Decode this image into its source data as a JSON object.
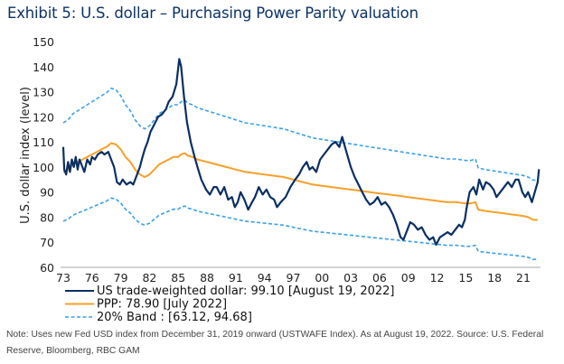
{
  "title": "Exhibit 5: U.S. dollar – Purchasing Power Parity valuation",
  "note": "Note: Uses new Fed USD index from December 31, 2019 onward (USTWAFE Index). As at August 19, 2022. Source: U.S. Federal Reserve, Bloomberg, RBC GAM",
  "colors": {
    "dollar": "#0b2f63",
    "ppp": "#f7a028",
    "band": "#3aa0e8",
    "title": "#0d3366",
    "axis": "#bbbbbb"
  },
  "chart_data": {
    "type": "line",
    "title": "Exhibit 5: U.S. dollar – Purchasing Power Parity valuation",
    "xlabel": "",
    "ylabel": "U.S. dollar index (level)",
    "xlim": [
      1973,
      2022.7
    ],
    "ylim": [
      60,
      150
    ],
    "yticks": [
      60,
      70,
      80,
      90,
      100,
      110,
      120,
      130,
      140,
      150
    ],
    "xticks": [
      1973,
      1976,
      1979,
      1982,
      1985,
      1988,
      1991,
      1994,
      1997,
      2000,
      2003,
      2006,
      2009,
      2012,
      2015,
      2018,
      2021
    ],
    "xtick_labels": [
      "73",
      "76",
      "79",
      "82",
      "85",
      "88",
      "91",
      "94",
      "97",
      "00",
      "03",
      "06",
      "09",
      "12",
      "15",
      "18",
      "21"
    ],
    "grid": false,
    "legend_position": "bottom-left",
    "series": [
      {
        "name": "US trade-weighted dollar: 99.10 [August 19, 2022]",
        "style": "solid",
        "color_key": "dollar",
        "x": [
          1973.0,
          1973.1,
          1973.3,
          1973.5,
          1973.7,
          1973.9,
          1974.1,
          1974.3,
          1974.5,
          1974.7,
          1975.0,
          1975.2,
          1975.5,
          1975.8,
          1976.0,
          1976.3,
          1976.6,
          1977.0,
          1977.3,
          1977.7,
          1978.0,
          1978.3,
          1978.6,
          1978.9,
          1979.2,
          1979.6,
          1980.0,
          1980.3,
          1980.6,
          1981.0,
          1981.2,
          1981.5,
          1981.8,
          1982.1,
          1982.5,
          1982.9,
          1983.3,
          1983.7,
          1984.0,
          1984.4,
          1984.8,
          1985.1,
          1985.3,
          1985.6,
          1985.9,
          1986.3,
          1986.7,
          1987.0,
          1987.4,
          1987.9,
          1988.3,
          1988.7,
          1989.0,
          1989.4,
          1989.8,
          1990.2,
          1990.6,
          1990.9,
          1991.2,
          1991.5,
          1991.9,
          1992.3,
          1992.7,
          1993.0,
          1993.4,
          1993.8,
          1994.2,
          1994.6,
          1995.0,
          1995.3,
          1995.7,
          1996.2,
          1996.7,
          1997.2,
          1997.6,
          1998.0,
          1998.4,
          1998.7,
          1999.0,
          1999.4,
          1999.8,
          2000.2,
          2000.6,
          2001.0,
          2001.4,
          2001.8,
          2002.1,
          2002.4,
          2002.7,
          2003.0,
          2003.4,
          2003.8,
          2004.2,
          2004.6,
          2005.0,
          2005.4,
          2005.8,
          2006.2,
          2006.6,
          2007.0,
          2007.4,
          2007.8,
          2008.2,
          2008.5,
          2008.9,
          2009.2,
          2009.6,
          2010.0,
          2010.4,
          2010.8,
          2011.2,
          2011.6,
          2011.9,
          2012.3,
          2012.7,
          2013.1,
          2013.5,
          2013.9,
          2014.3,
          2014.6,
          2014.9,
          2015.1,
          2015.4,
          2015.8,
          2016.1,
          2016.4,
          2016.8,
          2017.1,
          2017.5,
          2017.9,
          2018.2,
          2018.6,
          2019.0,
          2019.4,
          2019.8,
          2020.2,
          2020.5,
          2020.9,
          2021.2,
          2021.5,
          2021.9,
          2022.2,
          2022.5,
          2022.63
        ],
        "y": [
          108,
          99,
          97,
          102,
          98,
          103,
          100,
          104,
          99,
          103,
          100,
          98,
          103,
          101,
          104,
          103,
          105,
          106,
          105,
          106,
          103,
          100,
          94,
          93,
          95,
          93,
          94,
          93,
          96,
          100,
          103,
          107,
          110,
          114,
          117,
          120,
          121,
          123,
          126,
          128,
          133,
          143,
          140,
          128,
          118,
          110,
          104,
          100,
          95,
          91,
          89,
          92,
          92,
          89,
          92,
          87,
          88,
          84,
          86,
          90,
          87,
          83,
          86,
          88,
          92,
          89,
          91,
          88,
          87,
          84,
          86,
          88,
          92,
          95,
          97,
          100,
          102,
          99,
          100,
          98,
          103,
          105,
          107,
          109,
          110,
          108,
          112,
          108,
          104,
          100,
          96,
          93,
          90,
          87,
          85,
          86,
          88,
          85,
          86,
          84,
          81,
          77,
          72,
          71,
          75,
          78,
          77,
          75,
          76,
          73,
          71,
          72,
          69,
          72,
          73,
          74,
          73,
          75,
          77,
          76,
          79,
          84,
          90,
          92,
          89,
          95,
          91,
          94,
          93,
          91,
          88,
          90,
          92,
          94,
          92,
          95,
          95,
          90,
          88,
          90,
          86,
          90,
          94,
          99.1
        ]
      },
      {
        "name": "PPP: 78.90 [July 2022]",
        "style": "solid",
        "color_key": "ppp",
        "x": [
          1973.0,
          1973.5,
          1974.0,
          1974.5,
          1975.0,
          1975.5,
          1976.0,
          1976.5,
          1977.0,
          1977.5,
          1978.0,
          1978.5,
          1979.0,
          1979.5,
          1980.0,
          1980.5,
          1981.0,
          1981.5,
          1982.0,
          1982.5,
          1983.0,
          1983.5,
          1984.0,
          1984.5,
          1985.0,
          1985.3,
          1985.7,
          1986.0,
          1986.5,
          1987.0,
          1988.0,
          1989.0,
          1990.0,
          1991.0,
          1992.0,
          1993.0,
          1994.0,
          1995.0,
          1996.0,
          1997.0,
          1998.0,
          1999.0,
          2000.0,
          2001.0,
          2002.0,
          2003.0,
          2004.0,
          2005.0,
          2006.0,
          2007.0,
          2008.0,
          2009.0,
          2010.0,
          2011.0,
          2012.0,
          2013.0,
          2014.0,
          2015.0,
          2015.5,
          2016.0,
          2016.3,
          2017.0,
          2018.0,
          2019.0,
          2020.0,
          2021.0,
          2021.5,
          2022.0,
          2022.5
        ],
        "y": [
          98,
          99,
          101,
          102,
          103,
          104,
          105,
          106,
          107,
          108,
          109.5,
          109,
          107,
          104,
          102,
          99,
          97,
          96,
          97,
          99,
          101,
          102,
          103,
          104,
          104,
          105,
          105.5,
          104.5,
          104,
          103,
          102,
          101,
          100,
          99,
          98,
          97.5,
          97,
          96.5,
          96,
          95,
          94,
          93,
          92.5,
          92,
          91.5,
          91,
          90.5,
          90,
          89.5,
          89,
          88.5,
          88,
          87.5,
          87,
          86.5,
          86,
          86,
          85.5,
          85.5,
          86,
          83,
          82.5,
          82,
          81.5,
          81,
          80.5,
          80,
          79,
          78.9
        ]
      },
      {
        "name": "20% Band : [63.12, 94.68]",
        "style": "dashed",
        "color_key": "band",
        "sub": "upper",
        "x": [
          1973.0,
          1973.5,
          1974.0,
          1974.5,
          1975.0,
          1975.5,
          1976.0,
          1976.5,
          1977.0,
          1977.5,
          1978.0,
          1978.5,
          1979.0,
          1979.5,
          1980.0,
          1980.5,
          1981.0,
          1981.5,
          1982.0,
          1982.5,
          1983.0,
          1983.5,
          1984.0,
          1984.5,
          1985.0,
          1985.3,
          1985.7,
          1986.0,
          1986.5,
          1987.0,
          1988.0,
          1989.0,
          1990.0,
          1991.0,
          1992.0,
          1993.0,
          1994.0,
          1995.0,
          1996.0,
          1997.0,
          1998.0,
          1999.0,
          2000.0,
          2001.0,
          2002.0,
          2003.0,
          2004.0,
          2005.0,
          2006.0,
          2007.0,
          2008.0,
          2009.0,
          2010.0,
          2011.0,
          2012.0,
          2013.0,
          2014.0,
          2015.0,
          2015.5,
          2016.0,
          2016.3,
          2017.0,
          2018.0,
          2019.0,
          2020.0,
          2021.0,
          2021.5,
          2022.0,
          2022.5
        ],
        "y": [
          117.6,
          118.8,
          121.2,
          122.4,
          123.6,
          124.8,
          126,
          127.2,
          128.4,
          129.6,
          131.4,
          130.8,
          128.4,
          124.8,
          122.4,
          118.8,
          116.4,
          115.2,
          116.4,
          118.8,
          121.2,
          122.4,
          123.6,
          124.8,
          124.8,
          126,
          126.6,
          125.4,
          124.8,
          123.6,
          122.4,
          121.2,
          120,
          118.8,
          117.6,
          117,
          116.4,
          115.8,
          115.2,
          114,
          112.8,
          111.6,
          111,
          110.4,
          109.8,
          109.2,
          108.6,
          108,
          107.4,
          106.8,
          106.2,
          105.6,
          105,
          104.4,
          103.8,
          103.2,
          103.2,
          102.6,
          102.6,
          103.2,
          99.6,
          99,
          98.4,
          97.8,
          97.2,
          96.6,
          96,
          94.8,
          94.68
        ]
      },
      {
        "name": "20% Band lower",
        "style": "dashed",
        "color_key": "band",
        "sub": "lower",
        "x": [
          1973.0,
          1973.5,
          1974.0,
          1974.5,
          1975.0,
          1975.5,
          1976.0,
          1976.5,
          1977.0,
          1977.5,
          1978.0,
          1978.5,
          1979.0,
          1979.5,
          1980.0,
          1980.5,
          1981.0,
          1981.5,
          1982.0,
          1982.5,
          1983.0,
          1983.5,
          1984.0,
          1984.5,
          1985.0,
          1985.3,
          1985.7,
          1986.0,
          1986.5,
          1987.0,
          1988.0,
          1989.0,
          1990.0,
          1991.0,
          1992.0,
          1993.0,
          1994.0,
          1995.0,
          1996.0,
          1997.0,
          1998.0,
          1999.0,
          2000.0,
          2001.0,
          2002.0,
          2003.0,
          2004.0,
          2005.0,
          2006.0,
          2007.0,
          2008.0,
          2009.0,
          2010.0,
          2011.0,
          2012.0,
          2013.0,
          2014.0,
          2015.0,
          2015.5,
          2016.0,
          2016.3,
          2017.0,
          2018.0,
          2019.0,
          2020.0,
          2021.0,
          2021.5,
          2022.0,
          2022.5
        ],
        "y": [
          78.4,
          79.2,
          80.8,
          81.6,
          82.4,
          83.2,
          84,
          84.8,
          85.6,
          86.4,
          87.6,
          87.2,
          85.6,
          83.2,
          81.6,
          79.2,
          77.6,
          76.8,
          77.6,
          79.2,
          80.8,
          81.6,
          82.4,
          83.2,
          83.2,
          84,
          84.4,
          83.6,
          83.2,
          82.4,
          81.6,
          80.8,
          80,
          79.2,
          78.4,
          78,
          77.6,
          77.2,
          76.8,
          76,
          75.2,
          74.4,
          74,
          73.6,
          73.2,
          72.8,
          72.4,
          72,
          71.6,
          71.2,
          70.8,
          70.4,
          70,
          69.6,
          69.2,
          68.8,
          68.8,
          68.4,
          68.4,
          68.8,
          66.4,
          66,
          65.6,
          65.2,
          64.8,
          64.4,
          64,
          63.2,
          63.12
        ]
      }
    ],
    "legend": [
      {
        "label": "US trade-weighted dollar: 99.10 [August 19, 2022]",
        "style": "solid",
        "color_key": "dollar"
      },
      {
        "label": "PPP: 78.90 [July 2022]",
        "style": "solid",
        "color_key": "ppp"
      },
      {
        "label": "20% Band : [63.12, 94.68]",
        "style": "dashed",
        "color_key": "band"
      }
    ]
  }
}
